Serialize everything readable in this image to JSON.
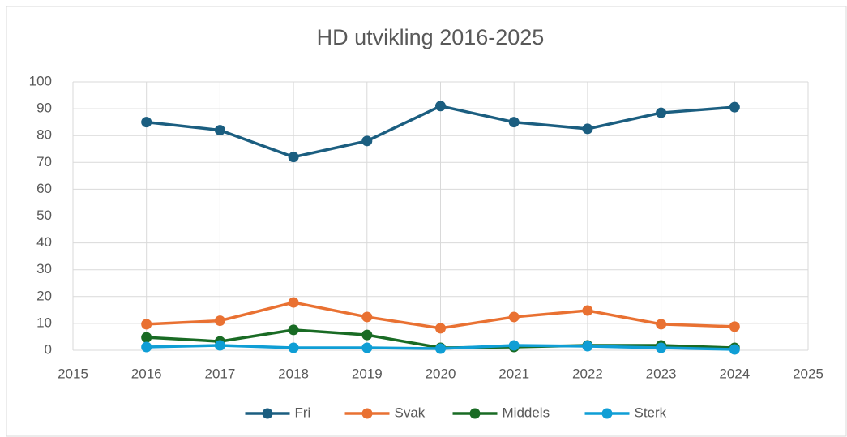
{
  "chart_data": {
    "type": "line",
    "title": "HD utvikling 2016-2025",
    "x": [
      2016,
      2017,
      2018,
      2019,
      2020,
      2021,
      2022,
      2023,
      2024
    ],
    "series": [
      {
        "name": "Fri",
        "color": "#1b5e80",
        "values": [
          85,
          82,
          72,
          78,
          91,
          85,
          82.5,
          88.5,
          90.6
        ]
      },
      {
        "name": "Svak",
        "color": "#e97132",
        "values": [
          9.7,
          11,
          17.8,
          12.4,
          8.2,
          12.4,
          14.8,
          9.7,
          8.8
        ]
      },
      {
        "name": "Middels",
        "color": "#196b24",
        "values": [
          4.8,
          3.3,
          7.6,
          5.7,
          0.9,
          1.2,
          1.8,
          1.8,
          0.9
        ]
      },
      {
        "name": "Sterk",
        "color": "#0f9ed5",
        "values": [
          1.2,
          1.8,
          0.9,
          0.9,
          0.6,
          1.8,
          1.5,
          0.9,
          0.3
        ]
      }
    ],
    "xlim": [
      2015,
      2025
    ],
    "xticks": [
      2015,
      2016,
      2017,
      2018,
      2019,
      2020,
      2021,
      2022,
      2023,
      2024,
      2025
    ],
    "ylim": [
      0,
      100
    ],
    "yticks": [
      0,
      10,
      20,
      30,
      40,
      50,
      60,
      70,
      80,
      90,
      100
    ],
    "grid": true,
    "legend": "bottom"
  }
}
